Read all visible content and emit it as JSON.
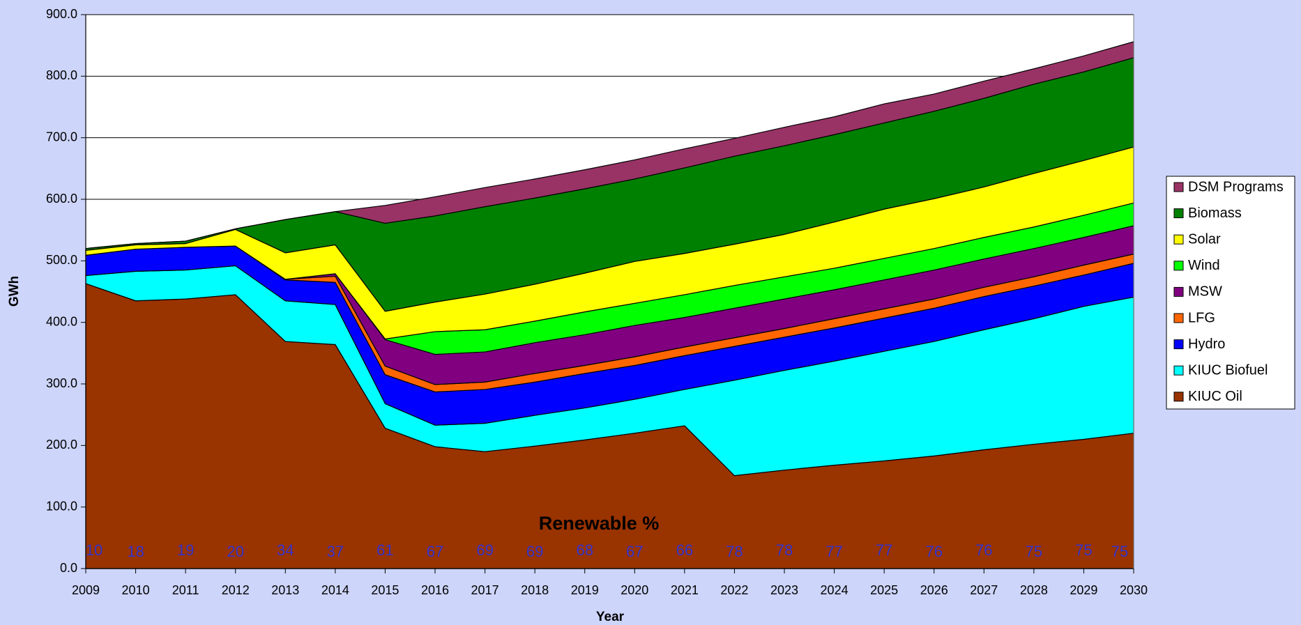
{
  "chart_data": {
    "type": "stacked_area",
    "xlabel": "Year",
    "ylabel": "GWh",
    "categories": [
      "2009",
      "2010",
      "2011",
      "2012",
      "2013",
      "2014",
      "2015",
      "2016",
      "2017",
      "2018",
      "2019",
      "2020",
      "2021",
      "2022",
      "2023",
      "2024",
      "2025",
      "2026",
      "2027",
      "2028",
      "2029",
      "2030"
    ],
    "ylim": [
      0,
      900
    ],
    "yticks": [
      {
        "value": 0,
        "label": "0.0"
      },
      {
        "value": 100,
        "label": "100.0"
      },
      {
        "value": 200,
        "label": "200.0"
      },
      {
        "value": 300,
        "label": "300.0"
      },
      {
        "value": 400,
        "label": "400.0"
      },
      {
        "value": 500,
        "label": "500.0"
      },
      {
        "value": 600,
        "label": "600.0"
      },
      {
        "value": 700,
        "label": "700.0"
      },
      {
        "value": 800,
        "label": "800.0"
      },
      {
        "value": 900,
        "label": "900.0"
      }
    ],
    "grid": true,
    "legend": "right",
    "series": [
      {
        "name": "KIUC Oil",
        "color": "#993300",
        "values": [
          463,
          435,
          438,
          445,
          369,
          364,
          228,
          198,
          190,
          199,
          209,
          220,
          232,
          151,
          160,
          168,
          175,
          183,
          193,
          202,
          210,
          220
        ]
      },
      {
        "name": "KIUC Biofuel",
        "color": "#00ffff",
        "values": [
          13,
          48,
          47,
          47,
          66,
          65,
          40,
          35,
          46,
          50,
          52,
          55,
          59,
          155,
          162,
          169,
          178,
          186,
          195,
          204,
          216,
          221
        ]
      },
      {
        "name": "Hydro",
        "color": "#0000ff",
        "values": [
          33,
          36,
          37,
          32,
          34,
          36,
          47,
          54,
          55,
          54,
          56,
          55,
          55,
          55,
          54,
          54,
          54,
          54,
          54,
          53,
          51,
          55
        ]
      },
      {
        "name": "LFG",
        "color": "#ff6600",
        "values": [
          0,
          0,
          0,
          0,
          1,
          10,
          14,
          12,
          12,
          14,
          13,
          14,
          14,
          14,
          14,
          15,
          15,
          15,
          15,
          15,
          16,
          15
        ]
      },
      {
        "name": "MSW",
        "color": "#800080",
        "values": [
          0,
          0,
          0,
          0,
          0,
          4,
          43,
          49,
          49,
          50,
          50,
          51,
          48,
          48,
          48,
          47,
          47,
          47,
          46,
          46,
          45,
          46
        ]
      },
      {
        "name": "Wind",
        "color": "#00ff00",
        "values": [
          0,
          0,
          0,
          0,
          0,
          0,
          1,
          37,
          36,
          35,
          37,
          36,
          37,
          37,
          36,
          35,
          35,
          35,
          35,
          35,
          36,
          37
        ]
      },
      {
        "name": "Solar",
        "color": "#ffff00",
        "values": [
          8,
          7,
          6,
          27,
          43,
          47,
          45,
          48,
          58,
          60,
          63,
          68,
          67,
          67,
          69,
          75,
          80,
          81,
          82,
          87,
          89,
          91
        ]
      },
      {
        "name": "Biomass",
        "color": "#008000",
        "values": [
          3,
          2,
          4,
          1,
          54,
          54,
          143,
          140,
          142,
          140,
          137,
          134,
          139,
          143,
          144,
          142,
          140,
          142,
          144,
          145,
          144,
          145
        ]
      },
      {
        "name": "DSM Programs",
        "color": "#993366",
        "values": [
          0,
          0,
          0,
          0,
          0,
          0,
          29,
          31,
          31,
          31,
          31,
          31,
          31,
          29,
          30,
          29,
          31,
          28,
          28,
          25,
          26,
          26
        ]
      }
    ],
    "renewable_percent": {
      "title": "Renewable %",
      "values": [
        10,
        18,
        19,
        20,
        34,
        37,
        61,
        67,
        69,
        69,
        68,
        67,
        66,
        78,
        78,
        77,
        77,
        76,
        76,
        75,
        75,
        75
      ]
    }
  }
}
